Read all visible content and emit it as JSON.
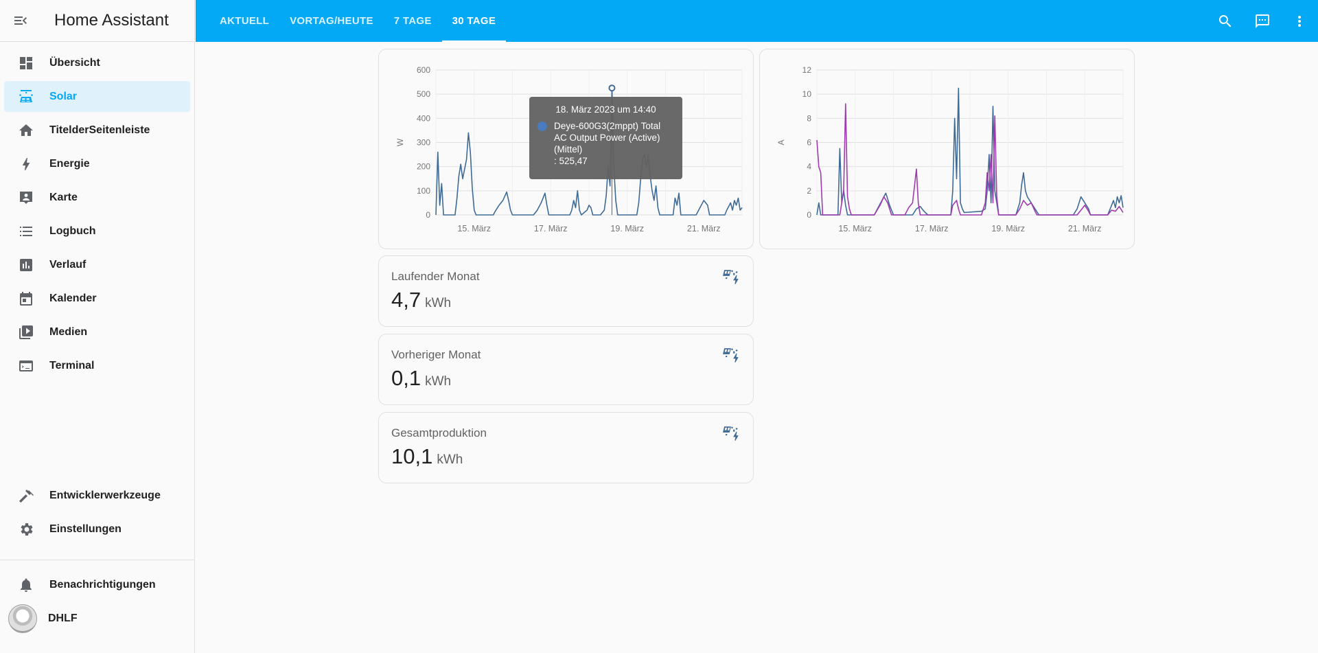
{
  "app": {
    "title": "Home Assistant"
  },
  "sidebar": {
    "items": [
      {
        "label": "Übersicht",
        "icon": "dashboard-icon"
      },
      {
        "label": "Solar",
        "icon": "solar-panel-icon",
        "active": true
      },
      {
        "label": "TitelderSeitenleiste",
        "icon": "home-icon"
      },
      {
        "label": "Energie",
        "icon": "lightning-bolt-icon"
      },
      {
        "label": "Karte",
        "icon": "map-icon"
      },
      {
        "label": "Logbuch",
        "icon": "logbook-icon"
      },
      {
        "label": "Verlauf",
        "icon": "chart-box-icon"
      },
      {
        "label": "Kalender",
        "icon": "calendar-icon"
      },
      {
        "label": "Medien",
        "icon": "media-play-icon"
      },
      {
        "label": "Terminal",
        "icon": "console-icon"
      }
    ],
    "bottom_items": [
      {
        "label": "Entwicklerwerkzeuge",
        "icon": "hammer-icon"
      },
      {
        "label": "Einstellungen",
        "icon": "cog-icon"
      }
    ],
    "notifications_label": "Benachrichtigungen",
    "user_name": "DHLF"
  },
  "header": {
    "tabs": [
      {
        "label": "AKTUELL"
      },
      {
        "label": "VORTAG/HEUTE"
      },
      {
        "label": "7 TAGE"
      },
      {
        "label": "30 TAGE",
        "active": true
      }
    ],
    "actions": [
      "search-icon",
      "assist-chat-icon",
      "more-vertical-icon"
    ]
  },
  "colors": {
    "accent": "#03a9f4",
    "series_blue": "#3e6a96",
    "series_purple": "#a03ab0"
  },
  "tooltip": {
    "title": "18. März 2023 um 14:40",
    "series": "Deye-600G3(2mppt) Total AC Output Power (Active) (Mittel)",
    "value": ": 525,47"
  },
  "chart_data": [
    {
      "type": "line",
      "ylabel": "W",
      "ylim": [
        0,
        600
      ],
      "yticks": [
        "0",
        "100",
        "200",
        "300",
        "400",
        "500",
        "600"
      ],
      "xticks": [
        "15. März",
        "17. März",
        "19. März",
        "21. März"
      ],
      "series": [
        {
          "name": "Deye-600G3(2mppt) Total AC Output Power (Active) (Mittel)",
          "points": [
            [
              14.0,
              0
            ],
            [
              14.05,
              260
            ],
            [
              14.1,
              40
            ],
            [
              14.15,
              130
            ],
            [
              14.2,
              0
            ],
            [
              14.35,
              0
            ],
            [
              14.5,
              0
            ],
            [
              14.55,
              70
            ],
            [
              14.6,
              160
            ],
            [
              14.65,
              210
            ],
            [
              14.7,
              150
            ],
            [
              14.75,
              190
            ],
            [
              14.8,
              230
            ],
            [
              14.85,
              340
            ],
            [
              14.9,
              260
            ],
            [
              14.95,
              110
            ],
            [
              15.0,
              20
            ],
            [
              15.05,
              0
            ],
            [
              15.5,
              0
            ],
            [
              15.55,
              15
            ],
            [
              15.65,
              40
            ],
            [
              15.75,
              60
            ],
            [
              15.85,
              95
            ],
            [
              15.9,
              60
            ],
            [
              15.95,
              20
            ],
            [
              16.0,
              0
            ],
            [
              16.55,
              0
            ],
            [
              16.65,
              20
            ],
            [
              16.75,
              50
            ],
            [
              16.85,
              90
            ],
            [
              16.9,
              40
            ],
            [
              16.95,
              0
            ],
            [
              17.5,
              0
            ],
            [
              17.55,
              20
            ],
            [
              17.6,
              60
            ],
            [
              17.65,
              30
            ],
            [
              17.7,
              100
            ],
            [
              17.75,
              20
            ],
            [
              17.8,
              0
            ],
            [
              17.95,
              20
            ],
            [
              18.0,
              40
            ],
            [
              18.05,
              30
            ],
            [
              18.1,
              0
            ],
            [
              18.3,
              0
            ],
            [
              18.4,
              20
            ],
            [
              18.45,
              80
            ],
            [
              18.5,
              200
            ],
            [
              18.55,
              120
            ],
            [
              18.6,
              525
            ],
            [
              18.65,
              200
            ],
            [
              18.7,
              60
            ],
            [
              18.75,
              0
            ],
            [
              19.25,
              0
            ],
            [
              19.3,
              50
            ],
            [
              19.35,
              150
            ],
            [
              19.4,
              230
            ],
            [
              19.45,
              250
            ],
            [
              19.5,
              200
            ],
            [
              19.55,
              250
            ],
            [
              19.6,
              160
            ],
            [
              19.65,
              100
            ],
            [
              19.7,
              60
            ],
            [
              19.75,
              120
            ],
            [
              19.8,
              30
            ],
            [
              19.85,
              0
            ],
            [
              20.2,
              0
            ],
            [
              20.25,
              70
            ],
            [
              20.3,
              40
            ],
            [
              20.35,
              90
            ],
            [
              20.4,
              0
            ],
            [
              20.8,
              0
            ],
            [
              20.9,
              30
            ],
            [
              21.0,
              60
            ],
            [
              21.1,
              40
            ],
            [
              21.15,
              0
            ],
            [
              21.55,
              0
            ],
            [
              21.6,
              20
            ],
            [
              21.7,
              50
            ],
            [
              21.75,
              20
            ],
            [
              21.8,
              60
            ],
            [
              21.85,
              40
            ],
            [
              21.9,
              70
            ],
            [
              21.95,
              20
            ],
            [
              22.0,
              30
            ]
          ]
        }
      ]
    },
    {
      "type": "line",
      "ylabel": "A",
      "ylim": [
        0,
        12
      ],
      "yticks": [
        "0",
        "2",
        "4",
        "6",
        "8",
        "10",
        "12"
      ],
      "xticks": [
        "15. März",
        "17. März",
        "19. März",
        "21. März"
      ],
      "series": [
        {
          "points": [
            [
              14.0,
              0
            ],
            [
              14.05,
              1.0
            ],
            [
              14.1,
              0
            ],
            [
              14.55,
              0
            ],
            [
              14.6,
              5.5
            ],
            [
              14.65,
              1.0
            ],
            [
              14.7,
              2.0
            ],
            [
              14.75,
              0.8
            ],
            [
              14.8,
              0
            ],
            [
              15.0,
              0
            ],
            [
              15.5,
              0
            ],
            [
              15.6,
              0.6
            ],
            [
              15.7,
              1.2
            ],
            [
              15.8,
              1.8
            ],
            [
              15.9,
              0.8
            ],
            [
              16.0,
              0
            ],
            [
              16.5,
              0
            ],
            [
              16.6,
              0.5
            ],
            [
              16.7,
              0.7
            ],
            [
              16.8,
              0.3
            ],
            [
              16.9,
              0
            ],
            [
              17.5,
              0
            ],
            [
              17.55,
              2.0
            ],
            [
              17.6,
              8.0
            ],
            [
              17.65,
              3.0
            ],
            [
              17.7,
              10.5
            ],
            [
              17.75,
              1.0
            ],
            [
              17.8,
              0.5
            ],
            [
              17.85,
              0.2
            ],
            [
              18.3,
              0.3
            ],
            [
              18.4,
              0.5
            ],
            [
              18.45,
              2.0
            ],
            [
              18.5,
              5.0
            ],
            [
              18.55,
              1.0
            ],
            [
              18.6,
              9.0
            ],
            [
              18.65,
              2.0
            ],
            [
              18.7,
              1.0
            ],
            [
              18.75,
              0
            ],
            [
              19.2,
              0
            ],
            [
              19.3,
              1.0
            ],
            [
              19.35,
              2.5
            ],
            [
              19.4,
              3.5
            ],
            [
              19.45,
              2.0
            ],
            [
              19.5,
              1.5
            ],
            [
              19.6,
              1.0
            ],
            [
              19.7,
              0.5
            ],
            [
              19.8,
              0
            ],
            [
              20.7,
              0
            ],
            [
              20.8,
              0.5
            ],
            [
              20.9,
              1.5
            ],
            [
              21.0,
              1.0
            ],
            [
              21.1,
              0.5
            ],
            [
              21.15,
              0
            ],
            [
              21.6,
              0
            ],
            [
              21.7,
              0.8
            ],
            [
              21.75,
              1.2
            ],
            [
              21.8,
              0.6
            ],
            [
              21.85,
              1.5
            ],
            [
              21.9,
              1.0
            ],
            [
              21.95,
              1.6
            ],
            [
              22.0,
              0.6
            ]
          ],
          "color": "#3e6a96"
        },
        {
          "points": [
            [
              14.0,
              6.2
            ],
            [
              14.05,
              4.0
            ],
            [
              14.1,
              3.5
            ],
            [
              14.15,
              0
            ],
            [
              14.6,
              0
            ],
            [
              14.65,
              1.0
            ],
            [
              14.7,
              2.0
            ],
            [
              14.75,
              9.2
            ],
            [
              14.8,
              1.5
            ],
            [
              14.85,
              0.5
            ],
            [
              14.9,
              0
            ],
            [
              15.5,
              0
            ],
            [
              15.65,
              0.8
            ],
            [
              15.75,
              1.5
            ],
            [
              15.85,
              1.0
            ],
            [
              15.95,
              0
            ],
            [
              16.3,
              0
            ],
            [
              16.4,
              0.6
            ],
            [
              16.5,
              1.0
            ],
            [
              16.6,
              3.8
            ],
            [
              16.65,
              1.0
            ],
            [
              16.7,
              0
            ],
            [
              17.5,
              0
            ],
            [
              17.55,
              0.8
            ],
            [
              17.6,
              1.0
            ],
            [
              17.65,
              1.2
            ],
            [
              17.7,
              0.5
            ],
            [
              17.75,
              0
            ],
            [
              18.3,
              0
            ],
            [
              18.4,
              1.0
            ],
            [
              18.45,
              3.5
            ],
            [
              18.5,
              2.0
            ],
            [
              18.55,
              5.0
            ],
            [
              18.6,
              1.0
            ],
            [
              18.65,
              8.2
            ],
            [
              18.7,
              1.5
            ],
            [
              18.75,
              0
            ],
            [
              19.2,
              0
            ],
            [
              19.3,
              0.5
            ],
            [
              19.4,
              1.2
            ],
            [
              19.5,
              0.8
            ],
            [
              19.6,
              1.0
            ],
            [
              19.7,
              0.3
            ],
            [
              19.75,
              0
            ],
            [
              20.8,
              0
            ],
            [
              20.9,
              0.4
            ],
            [
              21.0,
              0.8
            ],
            [
              21.1,
              0.3
            ],
            [
              21.15,
              0
            ],
            [
              21.6,
              0
            ],
            [
              21.7,
              0.4
            ],
            [
              21.8,
              0.3
            ],
            [
              21.9,
              0.7
            ],
            [
              22.0,
              0.2
            ]
          ],
          "color": "#a03ab0"
        }
      ]
    }
  ],
  "stats": [
    {
      "name": "Laufender Monat",
      "value": "4,7",
      "unit": "kWh",
      "icon": "solar-power-icon"
    },
    {
      "name": "Vorheriger Monat",
      "value": "0,1",
      "unit": "kWh",
      "icon": "solar-power-icon"
    },
    {
      "name": "Gesamtproduktion",
      "value": "10,1",
      "unit": "kWh",
      "icon": "solar-power-icon"
    }
  ]
}
